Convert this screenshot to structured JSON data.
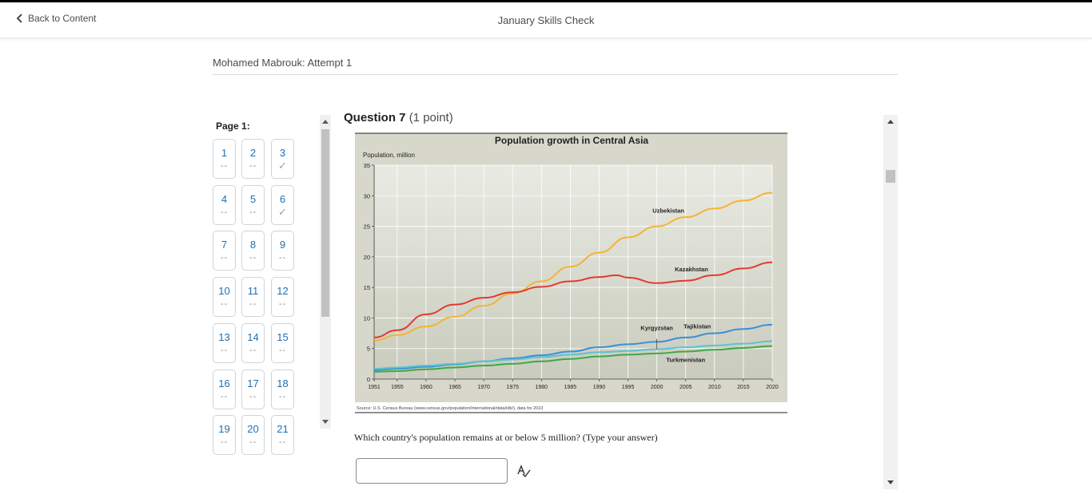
{
  "header": {
    "back_label": "Back to Content",
    "title": "January Skills Check"
  },
  "attempt_label": "Mohamed Mabrouk: Attempt 1",
  "nav": {
    "page_label": "Page 1:",
    "questions": [
      {
        "num": "1",
        "status": "--"
      },
      {
        "num": "2",
        "status": "--"
      },
      {
        "num": "3",
        "status": "✓"
      },
      {
        "num": "4",
        "status": "--"
      },
      {
        "num": "5",
        "status": "--"
      },
      {
        "num": "6",
        "status": "✓"
      },
      {
        "num": "7",
        "status": "--"
      },
      {
        "num": "8",
        "status": "--"
      },
      {
        "num": "9",
        "status": "--"
      },
      {
        "num": "10",
        "status": "--"
      },
      {
        "num": "11",
        "status": "--"
      },
      {
        "num": "12",
        "status": "--"
      },
      {
        "num": "13",
        "status": "--"
      },
      {
        "num": "14",
        "status": "--"
      },
      {
        "num": "15",
        "status": "--"
      },
      {
        "num": "16",
        "status": "--"
      },
      {
        "num": "17",
        "status": "--"
      },
      {
        "num": "18",
        "status": "--"
      },
      {
        "num": "19",
        "status": "--"
      },
      {
        "num": "20",
        "status": "--"
      },
      {
        "num": "21",
        "status": "--"
      }
    ]
  },
  "question": {
    "title_bold": "Question 7",
    "points": "(1 point)",
    "prompt": "Which country's population remains at or below 5 million? (Type your answer)",
    "answer_value": ""
  },
  "chart_data": {
    "type": "line",
    "title": "Population growth in Central Asia",
    "ylabel": "Population, million",
    "xlabel": "",
    "ylim": [
      0,
      35
    ],
    "xlim": [
      1951,
      2020
    ],
    "yticks": [
      "0",
      "5",
      "10",
      "15",
      "20",
      "25",
      "30",
      "35"
    ],
    "xticks": [
      "1951",
      "1955",
      "1960",
      "1965",
      "1970",
      "1975",
      "1980",
      "1985",
      "1990",
      "1995",
      "2000",
      "2005",
      "2010",
      "2015",
      "2020"
    ],
    "source": "Source: U.S. Census Bureau (www.census.gov/population/international/data/idb/), data for 2010",
    "series": [
      {
        "name": "Uzbekistan",
        "color": "#f5b335",
        "x": [
          1951,
          1955,
          1960,
          1965,
          1970,
          1975,
          1980,
          1985,
          1990,
          1995,
          2000,
          2005,
          2010,
          2015,
          2020
        ],
        "y": [
          6.3,
          7.2,
          8.6,
          10.2,
          12.0,
          14.0,
          16.0,
          18.4,
          20.7,
          23.2,
          25.0,
          26.5,
          27.9,
          29.2,
          30.5
        ]
      },
      {
        "name": "Kazakhstan",
        "color": "#e23b30",
        "x": [
          1951,
          1955,
          1960,
          1965,
          1970,
          1975,
          1980,
          1985,
          1990,
          1993,
          1995,
          2000,
          2005,
          2010,
          2015,
          2020
        ],
        "y": [
          6.8,
          8.0,
          10.6,
          12.2,
          13.3,
          14.2,
          15.1,
          16.0,
          16.7,
          17.0,
          16.6,
          15.7,
          16.1,
          17.0,
          18.1,
          19.1
        ]
      },
      {
        "name": "Tajikistan",
        "color": "#3a8fd6",
        "x": [
          1951,
          1955,
          1960,
          1965,
          1970,
          1975,
          1980,
          1985,
          1990,
          1995,
          2000,
          2005,
          2010,
          2015,
          2020
        ],
        "y": [
          1.5,
          1.7,
          2.0,
          2.4,
          2.9,
          3.4,
          3.9,
          4.5,
          5.2,
          5.7,
          6.1,
          6.8,
          7.5,
          8.2,
          8.9
        ]
      },
      {
        "name": "Kyrgyzstan",
        "color": "#5cc2d0",
        "x": [
          1951,
          1955,
          1960,
          1965,
          1970,
          1975,
          1980,
          1985,
          1990,
          1995,
          2000,
          2005,
          2010,
          2015,
          2020
        ],
        "y": [
          1.7,
          1.9,
          2.2,
          2.5,
          2.9,
          3.2,
          3.6,
          4.0,
          4.4,
          4.6,
          4.9,
          5.2,
          5.5,
          5.8,
          6.2
        ]
      },
      {
        "name": "Turkmenistan",
        "color": "#3ea844",
        "x": [
          1951,
          1955,
          1960,
          1965,
          1970,
          1975,
          1980,
          1985,
          1990,
          1995,
          2000,
          2005,
          2010,
          2015,
          2020
        ],
        "y": [
          1.2,
          1.3,
          1.6,
          1.9,
          2.2,
          2.5,
          2.9,
          3.3,
          3.7,
          4.0,
          4.2,
          4.5,
          4.8,
          5.1,
          5.4
        ]
      }
    ],
    "labels": [
      {
        "text": "Uzbekistan",
        "x": 2002,
        "y": 27.2
      },
      {
        "text": "Kazakhstan",
        "x": 2006,
        "y": 17.6
      },
      {
        "text": "Kyrgyzstan",
        "x": 2000,
        "y": 8.0
      },
      {
        "text": "Tajikistan",
        "x": 2007,
        "y": 8.3
      },
      {
        "text": "Turkmenistan",
        "x": 2005,
        "y": 2.8
      }
    ]
  }
}
